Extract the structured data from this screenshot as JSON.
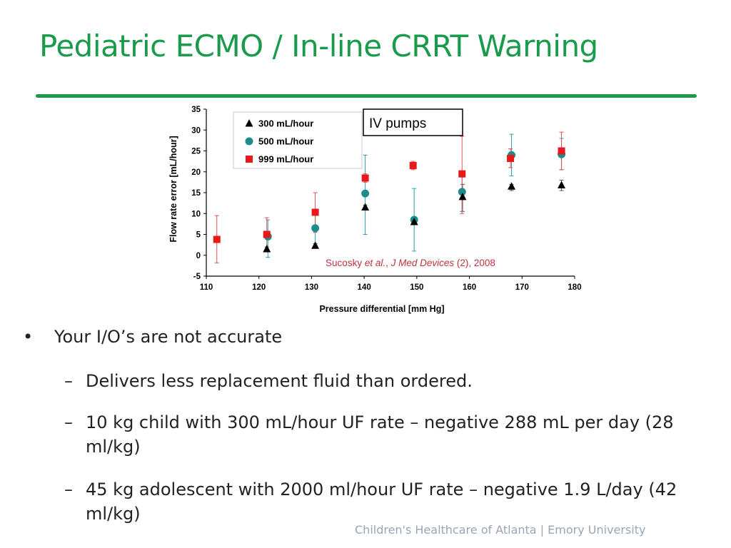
{
  "slide": {
    "title": "Pediatric ECMO / In-line CRRT Warning",
    "accent_color": "#1a9a4b",
    "footer": "Children's Healthcare of Atlanta | Emory University"
  },
  "bullets": [
    {
      "level": 1,
      "marker": "•",
      "text": "Your I/O’s are not accurate"
    },
    {
      "level": 2,
      "marker": "–",
      "text": "Delivers less replacement fluid than ordered."
    },
    {
      "level": 2,
      "marker": "–",
      "text": "10 kg child with 300 mL/hour UF rate – negative 288 mL per day (28 ml/kg)"
    },
    {
      "level": 2,
      "marker": "–",
      "text": "45 kg adolescent with 2000 ml/hour UF rate – negative 1.9 L/day (42 ml/kg)"
    }
  ],
  "chart_data": {
    "type": "scatter",
    "xlabel": "Pressure differential [mm Hg]",
    "ylabel": "Flow rate error [mL/hour]",
    "xlim": [
      110,
      180
    ],
    "ylim": [
      -5,
      35
    ],
    "xticks": [
      "110",
      "120",
      "130",
      "140",
      "150",
      "160",
      "170",
      "180"
    ],
    "yticks": [
      "-5",
      "0",
      "5",
      "10",
      "15",
      "20",
      "25",
      "30",
      "35"
    ],
    "annotation_box": "IV pumps",
    "citation": {
      "prefix": "Sucosky ",
      "etal": "et al.",
      "sep": ", ",
      "journal": "J Med Devices",
      "suffix": " (2), 2008",
      "color": "#c0343c"
    },
    "legend_position": "top-left",
    "series": [
      {
        "name": "300 mL/hour",
        "marker": "triangle",
        "color": "#000000",
        "points": [
          {
            "x": 121.5,
            "y": 1.5,
            "lo": 1.0,
            "hi": 2.0
          },
          {
            "x": 130.7,
            "y": 2.3,
            "lo": 1.8,
            "hi": 2.8
          },
          {
            "x": 140.2,
            "y": 11.5,
            "lo": 11.0,
            "hi": 12.0
          },
          {
            "x": 149.5,
            "y": 8.0,
            "lo": 7.5,
            "hi": 8.5
          },
          {
            "x": 158.7,
            "y": 14.0,
            "lo": 10.5,
            "hi": 17.0
          },
          {
            "x": 168.0,
            "y": 16.5,
            "lo": 15.5,
            "hi": 17.0
          },
          {
            "x": 177.5,
            "y": 16.8,
            "lo": 15.5,
            "hi": 18.0
          }
        ]
      },
      {
        "name": "500 mL/hour",
        "marker": "circle",
        "color": "#1e8c8c",
        "points": [
          {
            "x": 121.7,
            "y": 4.5,
            "lo": -0.5,
            "hi": 8.5
          },
          {
            "x": 130.7,
            "y": 6.5,
            "lo": 2.0,
            "hi": 10.5
          },
          {
            "x": 140.2,
            "y": 14.8,
            "lo": 5.0,
            "hi": 24.0
          },
          {
            "x": 149.5,
            "y": 8.5,
            "lo": 1.0,
            "hi": 16.0
          },
          {
            "x": 158.6,
            "y": 15.2,
            "lo": 10.5,
            "hi": 19.5
          },
          {
            "x": 168.0,
            "y": 24.0,
            "lo": 19.0,
            "hi": 29.0
          },
          {
            "x": 177.5,
            "y": 24.2,
            "lo": 20.5,
            "hi": 28.0
          }
        ]
      },
      {
        "name": "999 mL/hour",
        "marker": "square",
        "color": "#e8181c",
        "points": [
          {
            "x": 112.0,
            "y": 3.8,
            "lo": -1.8,
            "hi": 9.5
          },
          {
            "x": 121.5,
            "y": 5.0,
            "lo": 1.0,
            "hi": 9.0
          },
          {
            "x": 130.7,
            "y": 10.3,
            "lo": 5.5,
            "hi": 15.0
          },
          {
            "x": 140.2,
            "y": 18.5,
            "lo": 17.5,
            "hi": 19.5
          },
          {
            "x": 149.3,
            "y": 21.5,
            "lo": 20.5,
            "hi": 22.5
          },
          {
            "x": 158.6,
            "y": 19.5,
            "lo": 10.0,
            "hi": 28.5
          },
          {
            "x": 167.8,
            "y": 23.2,
            "lo": 21.0,
            "hi": 25.5
          },
          {
            "x": 177.5,
            "y": 25.0,
            "lo": 20.5,
            "hi": 29.5
          }
        ]
      }
    ]
  }
}
